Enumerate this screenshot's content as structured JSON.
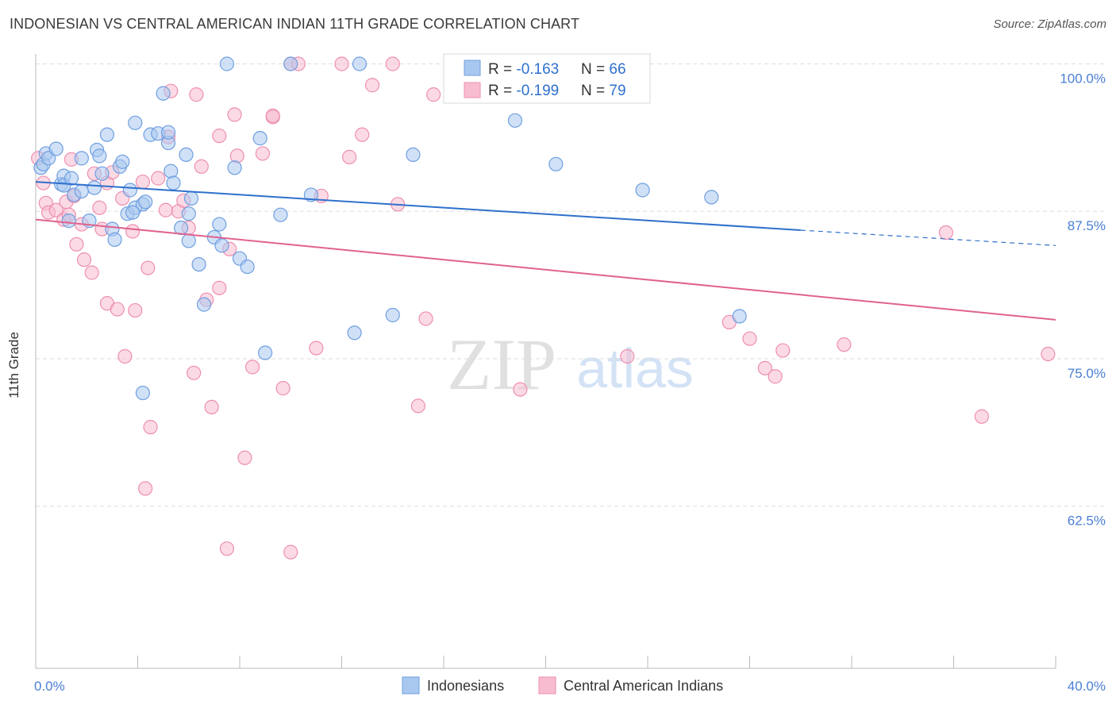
{
  "title": "INDONESIAN VS CENTRAL AMERICAN INDIAN 11TH GRADE CORRELATION CHART",
  "source": "Source: ZipAtlas.com",
  "watermark": {
    "zip": "ZIP",
    "atlas": "atlas"
  },
  "colors": {
    "blue_fill": "#a9c8f0",
    "blue_stroke": "#6f9fe0",
    "blue_line": "#2f70cc",
    "pink_fill": "#f7bcd0",
    "pink_stroke": "#ee8fb0",
    "pink_line": "#e0628f",
    "axis_label": "#4a7fd4",
    "grid": "#dddddd"
  },
  "legend": {
    "rows": [
      {
        "r_label": "R = ",
        "r_value": "-0.163",
        "n_label": "N = ",
        "n_value": "66"
      },
      {
        "r_label": "R = ",
        "r_value": "-0.199",
        "n_label": "N = ",
        "n_value": "79"
      }
    ]
  },
  "bottom_legend": [
    "Indonesians",
    "Central American Indians"
  ],
  "chart_data": {
    "type": "scatter",
    "title": "INDONESIAN VS CENTRAL AMERICAN INDIAN 11TH GRADE CORRELATION CHART",
    "xlabel": "",
    "ylabel": "11th Grade",
    "xlim": [
      0,
      40
    ],
    "ylim": [
      50,
      102
    ],
    "x_tick_labels": [
      "0.0%",
      "40.0%"
    ],
    "y_ticks": [
      62.5,
      75.0,
      87.5,
      100.0
    ],
    "y_tick_labels": [
      "62.5%",
      "75.0%",
      "87.5%",
      "100.0%"
    ],
    "grid": "horizontal dashed",
    "legend_position": "top-center",
    "series": [
      {
        "name": "Indonesians",
        "r": -0.163,
        "n": 66,
        "trend": {
          "x": [
            0,
            30
          ],
          "y": [
            90.0,
            85.9
          ],
          "dashed_to": [
            40,
            84.6
          ]
        },
        "points": [
          [
            0.2,
            91.2
          ],
          [
            0.3,
            91.5
          ],
          [
            0.4,
            92.4
          ],
          [
            0.5,
            92.0
          ],
          [
            0.8,
            92.8
          ],
          [
            1.0,
            89.8
          ],
          [
            1.1,
            90.5
          ],
          [
            1.1,
            89.7
          ],
          [
            1.4,
            90.3
          ],
          [
            1.5,
            88.9
          ],
          [
            1.8,
            89.2
          ],
          [
            1.8,
            92.0
          ],
          [
            2.1,
            86.7
          ],
          [
            2.3,
            89.5
          ],
          [
            2.4,
            92.7
          ],
          [
            2.5,
            92.2
          ],
          [
            2.6,
            90.7
          ],
          [
            2.8,
            94.0
          ],
          [
            3.0,
            86.0
          ],
          [
            3.1,
            85.1
          ],
          [
            3.3,
            91.3
          ],
          [
            3.4,
            91.7
          ],
          [
            3.6,
            87.3
          ],
          [
            3.7,
            89.3
          ],
          [
            3.9,
            87.8
          ],
          [
            3.9,
            95.0
          ],
          [
            4.2,
            88.1
          ],
          [
            4.3,
            88.3
          ],
          [
            4.5,
            94.0
          ],
          [
            4.8,
            94.1
          ],
          [
            5.0,
            97.5
          ],
          [
            5.2,
            93.3
          ],
          [
            5.3,
            90.9
          ],
          [
            5.4,
            89.9
          ],
          [
            5.9,
            92.3
          ],
          [
            6.0,
            87.3
          ],
          [
            6.1,
            88.6
          ],
          [
            5.7,
            86.1
          ],
          [
            6.4,
            83.0
          ],
          [
            6.6,
            79.6
          ],
          [
            7.0,
            85.3
          ],
          [
            7.2,
            86.4
          ],
          [
            7.3,
            84.6
          ],
          [
            7.5,
            100.0
          ],
          [
            7.8,
            91.2
          ],
          [
            8.0,
            83.5
          ],
          [
            8.3,
            82.8
          ],
          [
            8.8,
            93.7
          ],
          [
            9.0,
            75.5
          ],
          [
            9.6,
            87.2
          ],
          [
            10.0,
            100.0
          ],
          [
            10.8,
            88.9
          ],
          [
            12.5,
            77.2
          ],
          [
            12.7,
            100.0
          ],
          [
            14.0,
            78.7
          ],
          [
            14.8,
            92.3
          ],
          [
            18.8,
            95.2
          ],
          [
            20.4,
            91.5
          ],
          [
            23.8,
            89.3
          ],
          [
            26.5,
            88.7
          ],
          [
            27.6,
            78.6
          ],
          [
            4.2,
            72.1
          ],
          [
            5.2,
            94.2
          ],
          [
            3.8,
            87.4
          ],
          [
            6.0,
            85.0
          ],
          [
            1.3,
            86.7
          ]
        ]
      },
      {
        "name": "Central American Indians",
        "r": -0.199,
        "n": 79,
        "trend": {
          "x": [
            0,
            40
          ],
          "y": [
            86.8,
            78.3
          ]
        },
        "points": [
          [
            0.1,
            92.0
          ],
          [
            0.3,
            89.9
          ],
          [
            0.4,
            88.2
          ],
          [
            0.5,
            87.4
          ],
          [
            0.8,
            87.6
          ],
          [
            1.1,
            86.8
          ],
          [
            1.2,
            88.3
          ],
          [
            1.3,
            87.2
          ],
          [
            1.5,
            88.8
          ],
          [
            1.6,
            84.7
          ],
          [
            1.8,
            86.4
          ],
          [
            1.9,
            83.4
          ],
          [
            2.2,
            82.3
          ],
          [
            2.3,
            90.7
          ],
          [
            2.5,
            87.8
          ],
          [
            2.8,
            89.9
          ],
          [
            2.8,
            79.7
          ],
          [
            3.2,
            79.2
          ],
          [
            3.4,
            88.6
          ],
          [
            3.5,
            75.2
          ],
          [
            3.8,
            85.8
          ],
          [
            3.9,
            79.1
          ],
          [
            4.2,
            90.0
          ],
          [
            4.4,
            82.7
          ],
          [
            4.5,
            69.2
          ],
          [
            4.8,
            90.3
          ],
          [
            5.1,
            87.6
          ],
          [
            5.2,
            93.8
          ],
          [
            5.3,
            97.7
          ],
          [
            5.6,
            87.5
          ],
          [
            5.8,
            88.4
          ],
          [
            6.0,
            86.1
          ],
          [
            6.2,
            73.8
          ],
          [
            6.5,
            91.3
          ],
          [
            6.7,
            80.0
          ],
          [
            6.9,
            70.9
          ],
          [
            7.2,
            81.0
          ],
          [
            7.2,
            93.9
          ],
          [
            7.6,
            84.3
          ],
          [
            7.8,
            95.7
          ],
          [
            7.9,
            92.2
          ],
          [
            8.2,
            66.6
          ],
          [
            8.5,
            74.3
          ],
          [
            8.9,
            92.4
          ],
          [
            9.3,
            95.5
          ],
          [
            9.7,
            72.5
          ],
          [
            10.0,
            100.0
          ],
          [
            10.3,
            100.0
          ],
          [
            11.0,
            75.9
          ],
          [
            11.2,
            88.8
          ],
          [
            12.0,
            100.0
          ],
          [
            12.3,
            92.1
          ],
          [
            12.8,
            94.0
          ],
          [
            13.2,
            98.2
          ],
          [
            14.0,
            100.0
          ],
          [
            14.2,
            88.1
          ],
          [
            15.0,
            71.0
          ],
          [
            15.3,
            78.4
          ],
          [
            15.6,
            97.4
          ],
          [
            19.0,
            72.4
          ],
          [
            21.8,
            100.0
          ],
          [
            23.2,
            75.2
          ],
          [
            27.2,
            78.1
          ],
          [
            28.0,
            76.7
          ],
          [
            28.6,
            74.2
          ],
          [
            29.0,
            73.5
          ],
          [
            29.3,
            75.7
          ],
          [
            31.7,
            76.2
          ],
          [
            35.7,
            85.7
          ],
          [
            37.1,
            70.1
          ],
          [
            39.7,
            75.4
          ],
          [
            4.3,
            64.0
          ],
          [
            7.5,
            58.9
          ],
          [
            10.0,
            58.6
          ],
          [
            6.3,
            97.4
          ],
          [
            9.3,
            95.6
          ],
          [
            2.6,
            86.0
          ],
          [
            3.0,
            90.8
          ],
          [
            1.4,
            91.9
          ]
        ]
      }
    ]
  }
}
